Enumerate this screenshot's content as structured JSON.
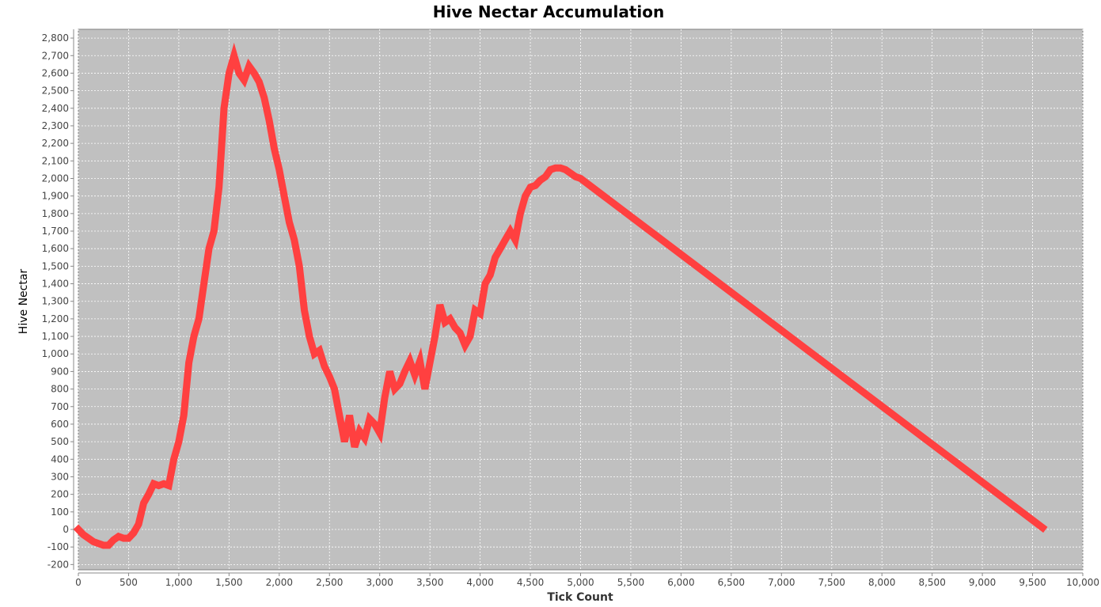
{
  "chart_data": {
    "type": "line",
    "title": "Hive Nectar Accumulation",
    "xlabel": "Tick Count",
    "ylabel": "Hive Nectar",
    "xlim": [
      0,
      10000
    ],
    "ylim": [
      -230,
      2850
    ],
    "x_ticks": [
      "0",
      "500",
      "1,000",
      "1,500",
      "2,000",
      "2,500",
      "3,000",
      "3,500",
      "4,000",
      "4,500",
      "5,000",
      "5,500",
      "6,000",
      "6,500",
      "7,000",
      "7,500",
      "8,000",
      "8,500",
      "9,000",
      "9,500",
      "10,000"
    ],
    "y_ticks": [
      "-200",
      "-100",
      "0",
      "100",
      "200",
      "300",
      "400",
      "500",
      "600",
      "700",
      "800",
      "900",
      "1,000",
      "1,100",
      "1,200",
      "1,300",
      "1,400",
      "1,500",
      "1,600",
      "1,700",
      "1,800",
      "1,900",
      "2,000",
      "2,100",
      "2,200",
      "2,300",
      "2,400",
      "2,500",
      "2,600",
      "2,700",
      "2,800"
    ],
    "grid": true,
    "legend": "none",
    "series": [
      {
        "color": "#ff4040",
        "points": [
          [
            0,
            0
          ],
          [
            50,
            -30
          ],
          [
            100,
            -50
          ],
          [
            150,
            -70
          ],
          [
            200,
            -80
          ],
          [
            250,
            -90
          ],
          [
            300,
            -90
          ],
          [
            350,
            -60
          ],
          [
            400,
            -40
          ],
          [
            450,
            -50
          ],
          [
            500,
            -50
          ],
          [
            550,
            -20
          ],
          [
            600,
            30
          ],
          [
            650,
            150
          ],
          [
            700,
            200
          ],
          [
            750,
            260
          ],
          [
            800,
            250
          ],
          [
            850,
            260
          ],
          [
            900,
            250
          ],
          [
            950,
            400
          ],
          [
            1000,
            500
          ],
          [
            1050,
            650
          ],
          [
            1100,
            950
          ],
          [
            1150,
            1100
          ],
          [
            1200,
            1200
          ],
          [
            1250,
            1400
          ],
          [
            1300,
            1600
          ],
          [
            1350,
            1700
          ],
          [
            1400,
            1950
          ],
          [
            1450,
            2400
          ],
          [
            1500,
            2600
          ],
          [
            1550,
            2700
          ],
          [
            1600,
            2600
          ],
          [
            1650,
            2560
          ],
          [
            1700,
            2640
          ],
          [
            1750,
            2600
          ],
          [
            1800,
            2550
          ],
          [
            1850,
            2460
          ],
          [
            1900,
            2330
          ],
          [
            1950,
            2170
          ],
          [
            2000,
            2050
          ],
          [
            2050,
            1900
          ],
          [
            2100,
            1750
          ],
          [
            2150,
            1650
          ],
          [
            2200,
            1500
          ],
          [
            2250,
            1250
          ],
          [
            2300,
            1100
          ],
          [
            2350,
            1000
          ],
          [
            2400,
            1020
          ],
          [
            2450,
            930
          ],
          [
            2500,
            870
          ],
          [
            2550,
            800
          ],
          [
            2600,
            650
          ],
          [
            2650,
            500
          ],
          [
            2700,
            650
          ],
          [
            2750,
            470
          ],
          [
            2800,
            560
          ],
          [
            2850,
            520
          ],
          [
            2900,
            630
          ],
          [
            2950,
            600
          ],
          [
            3000,
            550
          ],
          [
            3050,
            750
          ],
          [
            3100,
            900
          ],
          [
            3150,
            800
          ],
          [
            3200,
            830
          ],
          [
            3250,
            900
          ],
          [
            3300,
            960
          ],
          [
            3350,
            880
          ],
          [
            3400,
            960
          ],
          [
            3450,
            800
          ],
          [
            3500,
            950
          ],
          [
            3550,
            1100
          ],
          [
            3600,
            1280
          ],
          [
            3650,
            1180
          ],
          [
            3700,
            1200
          ],
          [
            3750,
            1150
          ],
          [
            3800,
            1120
          ],
          [
            3850,
            1050
          ],
          [
            3900,
            1100
          ],
          [
            3950,
            1250
          ],
          [
            4000,
            1230
          ],
          [
            4050,
            1400
          ],
          [
            4100,
            1450
          ],
          [
            4150,
            1550
          ],
          [
            4200,
            1600
          ],
          [
            4250,
            1650
          ],
          [
            4300,
            1700
          ],
          [
            4350,
            1650
          ],
          [
            4400,
            1800
          ],
          [
            4450,
            1900
          ],
          [
            4500,
            1950
          ],
          [
            4550,
            1960
          ],
          [
            4600,
            1990
          ],
          [
            4650,
            2010
          ],
          [
            4700,
            2050
          ],
          [
            4750,
            2060
          ],
          [
            4800,
            2060
          ],
          [
            4850,
            2050
          ],
          [
            4900,
            2030
          ],
          [
            4950,
            2010
          ],
          [
            5000,
            2000
          ],
          [
            9600,
            10
          ]
        ]
      }
    ]
  }
}
